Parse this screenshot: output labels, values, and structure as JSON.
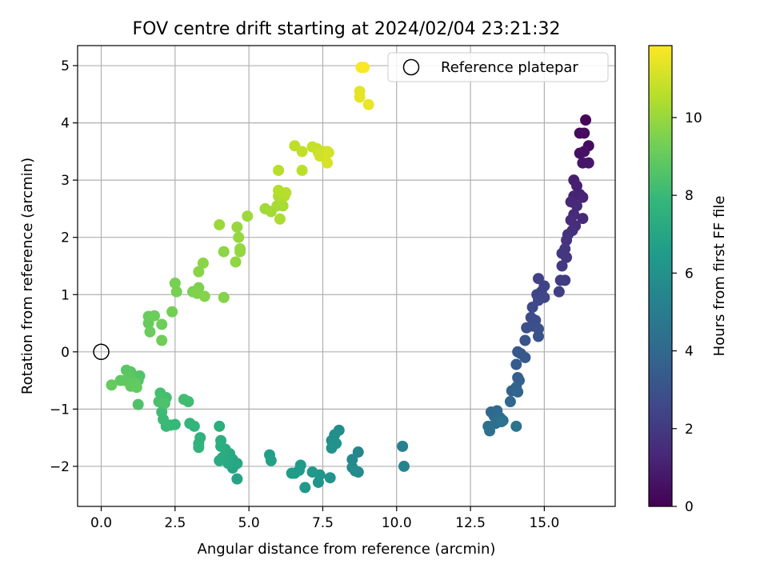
{
  "chart_data": {
    "type": "scatter",
    "title": "FOV centre drift starting at 2024/02/04 23:21:32",
    "xlabel": "Angular distance from reference (arcmin)",
    "ylabel": "Rotation from reference (arcmin)",
    "xlim": [
      -0.8,
      17.4
    ],
    "ylim": [
      -2.7,
      5.35
    ],
    "xticks": [
      0.0,
      2.5,
      5.0,
      7.5,
      10.0,
      12.5,
      15.0
    ],
    "xtick_labels": [
      "0.0",
      "2.5",
      "5.0",
      "7.5",
      "10.0",
      "12.5",
      "15.0"
    ],
    "yticks": [
      -2,
      -1,
      0,
      1,
      2,
      3,
      4,
      5
    ],
    "ytick_labels": [
      "−2",
      "−1",
      "0",
      "1",
      "2",
      "3",
      "4",
      "5"
    ],
    "grid": true,
    "legend": {
      "position": "top-right",
      "entries": [
        "Reference platepar"
      ]
    },
    "reference_point": {
      "label": "Reference platepar",
      "x": 0.0,
      "y": 0.0,
      "marker": "open-circle"
    },
    "colorbar": {
      "label": "Hours from first FF file",
      "colormap": "viridis",
      "range": [
        0,
        11.85
      ],
      "ticks": [
        0,
        2,
        4,
        6,
        8,
        10
      ],
      "tick_labels": [
        "0",
        "2",
        "4",
        "6",
        "8",
        "10"
      ]
    },
    "series": [
      {
        "color_by": "hours",
        "points": [
          [
            16.4,
            4.05,
            0.2
          ],
          [
            16.2,
            3.82,
            0.3
          ],
          [
            16.35,
            3.82,
            0.35
          ],
          [
            16.5,
            3.6,
            0.4
          ],
          [
            16.2,
            3.47,
            0.5
          ],
          [
            16.35,
            3.5,
            0.55
          ],
          [
            16.3,
            3.3,
            0.7
          ],
          [
            16.5,
            3.3,
            0.75
          ],
          [
            16.0,
            3.0,
            1.0
          ],
          [
            16.1,
            2.9,
            1.05
          ],
          [
            16.2,
            2.75,
            1.1
          ],
          [
            16.0,
            2.72,
            1.15
          ],
          [
            16.3,
            2.7,
            1.2
          ],
          [
            15.9,
            2.62,
            1.3
          ],
          [
            16.1,
            2.55,
            1.35
          ],
          [
            16.3,
            2.33,
            1.4
          ],
          [
            16.0,
            2.4,
            1.45
          ],
          [
            15.9,
            2.3,
            1.5
          ],
          [
            16.05,
            2.2,
            1.55
          ],
          [
            15.95,
            2.12,
            1.6
          ],
          [
            15.8,
            2.05,
            1.7
          ],
          [
            15.75,
            1.95,
            1.75
          ],
          [
            15.7,
            1.8,
            1.85
          ],
          [
            15.6,
            1.72,
            1.9
          ],
          [
            15.75,
            1.65,
            1.95
          ],
          [
            15.6,
            1.5,
            2.0
          ],
          [
            15.7,
            1.25,
            2.05
          ],
          [
            15.55,
            1.25,
            2.1
          ],
          [
            15.5,
            1.05,
            2.2
          ],
          [
            14.8,
            1.28,
            2.3
          ],
          [
            15.0,
            1.15,
            2.35
          ],
          [
            14.9,
            1.05,
            2.4
          ],
          [
            14.75,
            1.0,
            2.45
          ],
          [
            15.0,
            0.95,
            2.5
          ],
          [
            14.8,
            0.9,
            2.55
          ],
          [
            14.6,
            0.78,
            2.6
          ],
          [
            14.55,
            0.6,
            2.7
          ],
          [
            14.7,
            0.55,
            2.75
          ],
          [
            14.4,
            0.42,
            2.85
          ],
          [
            14.6,
            0.45,
            2.9
          ],
          [
            14.8,
            0.4,
            2.95
          ],
          [
            14.8,
            0.27,
            3.0
          ],
          [
            14.35,
            0.2,
            3.05
          ],
          [
            14.1,
            0.0,
            3.2
          ],
          [
            14.2,
            -0.03,
            3.25
          ],
          [
            14.35,
            -0.1,
            3.3
          ],
          [
            14.05,
            -0.22,
            3.4
          ],
          [
            14.1,
            -0.45,
            3.55
          ],
          [
            14.15,
            -0.5,
            3.6
          ],
          [
            14.05,
            -0.62,
            3.7
          ],
          [
            13.9,
            -0.68,
            3.75
          ],
          [
            14.1,
            -0.7,
            3.8
          ],
          [
            13.85,
            -0.87,
            3.9
          ],
          [
            13.2,
            -1.05,
            4.0
          ],
          [
            13.4,
            -1.03,
            4.05
          ],
          [
            13.3,
            -1.12,
            4.1
          ],
          [
            13.5,
            -1.15,
            4.15
          ],
          [
            13.6,
            -1.2,
            4.2
          ],
          [
            13.35,
            -1.25,
            4.25
          ],
          [
            13.1,
            -1.3,
            4.3
          ],
          [
            13.15,
            -1.38,
            4.4
          ],
          [
            13.55,
            -1.22,
            4.45
          ],
          [
            14.05,
            -1.3,
            4.5
          ],
          [
            10.2,
            -1.65,
            5.2
          ],
          [
            10.25,
            -2.0,
            5.3
          ],
          [
            8.7,
            -1.75,
            5.5
          ],
          [
            8.5,
            -1.88,
            5.6
          ],
          [
            8.5,
            -2.02,
            5.65
          ],
          [
            8.7,
            -2.1,
            5.7
          ],
          [
            8.6,
            -2.08,
            5.75
          ],
          [
            8.05,
            -1.37,
            5.8
          ],
          [
            7.9,
            -1.45,
            5.85
          ],
          [
            7.8,
            -1.55,
            5.9
          ],
          [
            7.95,
            -1.6,
            5.95
          ],
          [
            7.8,
            -1.68,
            6.0
          ],
          [
            7.75,
            -2.2,
            6.1
          ],
          [
            7.35,
            -2.28,
            6.15
          ],
          [
            7.4,
            -2.15,
            6.2
          ],
          [
            7.15,
            -2.1,
            6.3
          ],
          [
            6.9,
            -2.37,
            6.35
          ],
          [
            6.75,
            -1.98,
            6.4
          ],
          [
            6.7,
            -2.07,
            6.45
          ],
          [
            6.55,
            -2.12,
            6.5
          ],
          [
            6.45,
            -2.12,
            6.55
          ],
          [
            5.7,
            -1.8,
            6.7
          ],
          [
            5.75,
            -1.9,
            6.75
          ],
          [
            4.6,
            -2.22,
            6.9
          ],
          [
            4.45,
            -2.03,
            6.95
          ],
          [
            4.6,
            -1.95,
            7.0
          ],
          [
            4.45,
            -1.88,
            7.05
          ],
          [
            4.3,
            -1.95,
            7.1
          ],
          [
            4.35,
            -1.78,
            7.15
          ],
          [
            4.1,
            -1.85,
            7.2
          ],
          [
            4.0,
            -1.9,
            7.25
          ],
          [
            4.2,
            -1.7,
            7.3
          ],
          [
            4.05,
            -1.65,
            7.35
          ],
          [
            4.05,
            -1.55,
            7.4
          ],
          [
            4.0,
            -1.3,
            7.45
          ],
          [
            3.35,
            -1.5,
            7.6
          ],
          [
            3.3,
            -1.6,
            7.65
          ],
          [
            3.3,
            -1.67,
            7.7
          ],
          [
            3.15,
            -1.3,
            7.75
          ],
          [
            3.0,
            -1.25,
            7.8
          ],
          [
            2.5,
            -1.27,
            7.9
          ],
          [
            2.35,
            -1.28,
            7.95
          ],
          [
            2.2,
            -1.3,
            8.0
          ],
          [
            2.1,
            -1.18,
            8.05
          ],
          [
            2.05,
            -1.05,
            8.1
          ],
          [
            2.95,
            -0.87,
            8.15
          ],
          [
            2.8,
            -0.83,
            8.2
          ],
          [
            2.2,
            -0.8,
            8.25
          ],
          [
            2.0,
            -0.72,
            8.3
          ],
          [
            2.05,
            -0.85,
            8.35
          ],
          [
            1.95,
            -0.87,
            8.4
          ],
          [
            2.15,
            -0.9,
            8.45
          ],
          [
            1.25,
            -0.92,
            8.5
          ],
          [
            1.3,
            -0.42,
            8.55
          ],
          [
            1.25,
            -0.5,
            8.6
          ],
          [
            1.1,
            -0.42,
            8.65
          ],
          [
            1.0,
            -0.35,
            8.7
          ],
          [
            0.85,
            -0.32,
            8.75
          ],
          [
            0.95,
            -0.45,
            8.8
          ],
          [
            0.8,
            -0.5,
            8.85
          ],
          [
            0.65,
            -0.5,
            8.9
          ],
          [
            1.15,
            -0.55,
            8.92
          ],
          [
            1.0,
            -0.6,
            8.95
          ],
          [
            1.2,
            -0.62,
            8.97
          ],
          [
            0.35,
            -0.58,
            9.0
          ],
          [
            1.6,
            0.5,
            9.05
          ],
          [
            1.65,
            0.35,
            9.1
          ],
          [
            1.6,
            0.62,
            9.12
          ],
          [
            1.8,
            0.63,
            9.15
          ],
          [
            2.05,
            0.48,
            9.2
          ],
          [
            2.05,
            0.2,
            9.25
          ],
          [
            2.4,
            0.7,
            9.3
          ],
          [
            2.5,
            1.2,
            9.35
          ],
          [
            2.55,
            1.05,
            9.4
          ],
          [
            3.1,
            1.05,
            9.45
          ],
          [
            3.3,
            1.12,
            9.5
          ],
          [
            3.25,
            1.02,
            9.55
          ],
          [
            3.5,
            0.97,
            9.6
          ],
          [
            4.15,
            0.95,
            9.65
          ],
          [
            3.3,
            1.4,
            9.7
          ],
          [
            3.45,
            1.55,
            9.75
          ],
          [
            4.15,
            1.75,
            9.8
          ],
          [
            4.55,
            1.57,
            9.85
          ],
          [
            4.7,
            1.75,
            9.9
          ],
          [
            4.7,
            1.8,
            9.92
          ],
          [
            4.65,
            2.0,
            9.95
          ],
          [
            4.6,
            2.18,
            10.0
          ],
          [
            4.0,
            2.22,
            10.05
          ],
          [
            4.95,
            2.37,
            10.1
          ],
          [
            5.55,
            2.5,
            10.15
          ],
          [
            5.75,
            2.45,
            10.2
          ],
          [
            5.95,
            2.55,
            10.25
          ],
          [
            6.15,
            2.55,
            10.3
          ],
          [
            6.05,
            2.32,
            10.35
          ],
          [
            6.0,
            2.72,
            10.4
          ],
          [
            6.2,
            2.72,
            10.45
          ],
          [
            6.0,
            2.82,
            10.5
          ],
          [
            6.25,
            2.78,
            10.55
          ],
          [
            6.0,
            3.17,
            10.6
          ],
          [
            6.8,
            3.17,
            10.65
          ],
          [
            6.55,
            3.6,
            10.7
          ],
          [
            6.8,
            3.5,
            10.75
          ],
          [
            7.15,
            3.58,
            10.8
          ],
          [
            7.3,
            3.55,
            10.85
          ],
          [
            7.35,
            3.48,
            10.9
          ],
          [
            7.5,
            3.5,
            10.95
          ],
          [
            7.4,
            3.42,
            11.0
          ],
          [
            7.65,
            3.5,
            11.05
          ],
          [
            7.7,
            3.48,
            11.1
          ],
          [
            7.65,
            3.3,
            11.15
          ],
          [
            8.75,
            4.55,
            11.4
          ],
          [
            8.75,
            4.45,
            11.45
          ],
          [
            9.05,
            4.32,
            11.5
          ],
          [
            8.8,
            4.97,
            11.75
          ],
          [
            8.9,
            4.97,
            11.8
          ]
        ]
      }
    ]
  }
}
